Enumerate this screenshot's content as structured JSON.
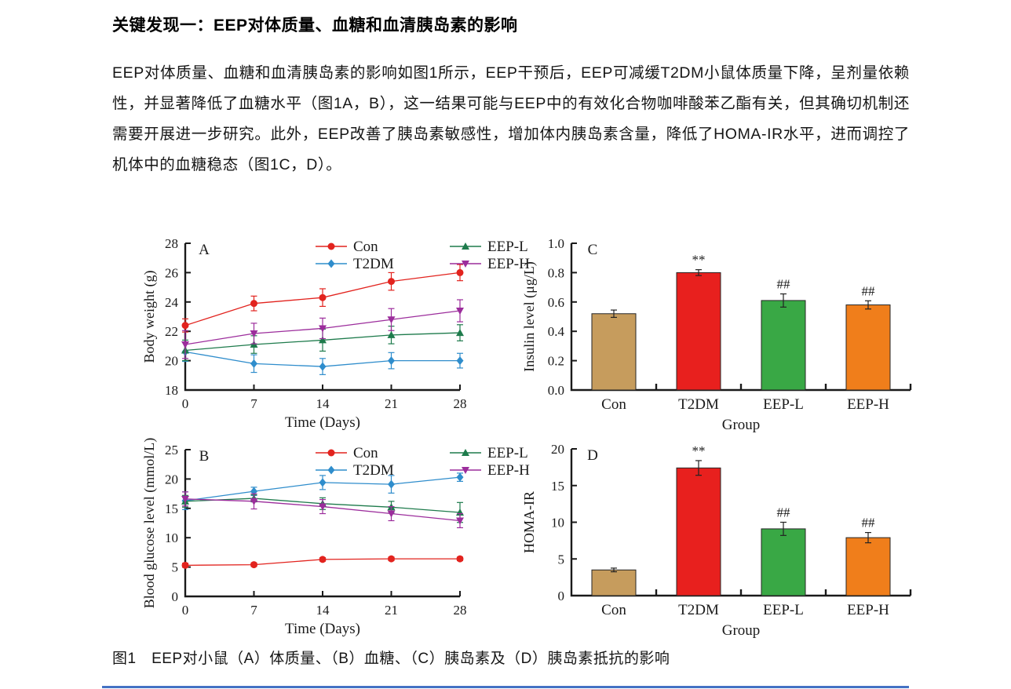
{
  "page": {
    "heading": "关键发现一：EEP对体质量、血糖和血清胰岛素的影响",
    "paragraph": "EEP对体质量、血糖和血清胰岛素的影响如图1所示，EEP干预后，EEP可减缓T2DM小鼠体质量下降，呈剂量依赖性，并显著降低了血糖水平（图1A，B），这一结果可能与EEP中的有效化合物咖啡酸苯乙酯有关，但其确切机制还需要开展进一步研究。此外，EEP改善了胰岛素敏感性，增加体内胰岛素含量，降低了HOMA-IR水平，进而调控了机体中的血糖稳态（图1C，D）。",
    "figure_caption": "图1　EEP对小鼠（A）体质量、（B）血糖、（C）胰岛素及（D）胰岛素抵抗的影响"
  },
  "colors": {
    "axis": "#1a1a1a",
    "con": "#e2231e",
    "t2dm": "#2f8dcc",
    "eep_l": "#1e7b4c",
    "eep_h": "#9c2d9c",
    "bar_con": "#c69c5d",
    "bar_t2dm": "#e8201e",
    "bar_eep_l": "#39a845",
    "bar_eep_h": "#f07e1b",
    "annotation": "#4a4a4a",
    "bottom_rule": "#4472c4"
  },
  "chart_data": [
    {
      "type": "line",
      "panel_label": "A",
      "xlabel": "Time (Days)",
      "ylabel": "Body weight (g)",
      "x": [
        0,
        7,
        14,
        21,
        28
      ],
      "xticks": [
        0,
        7,
        14,
        21,
        28
      ],
      "xlim": [
        0,
        28
      ],
      "ylim": [
        18,
        28
      ],
      "ytick_values": [
        18,
        20,
        22,
        24,
        26,
        28
      ],
      "ytick_labels": [
        "18",
        "20",
        "22",
        "24",
        "26",
        "28"
      ],
      "legend_position": "top",
      "series": [
        {
          "name": "Con",
          "marker": "circle",
          "color": "#e2231e",
          "values": [
            22.4,
            23.9,
            24.3,
            25.4,
            26.0
          ],
          "errors": [
            0.45,
            0.5,
            0.6,
            0.6,
            0.55
          ]
        },
        {
          "name": "T2DM",
          "marker": "diamond",
          "color": "#2f8dcc",
          "values": [
            20.6,
            19.8,
            19.6,
            20.0,
            20.0
          ],
          "errors": [
            0.65,
            0.6,
            0.55,
            0.55,
            0.5
          ]
        },
        {
          "name": "EEP-L",
          "marker": "triangle-up",
          "color": "#1e7b4c",
          "values": [
            20.7,
            21.1,
            21.4,
            21.75,
            21.9
          ],
          "errors": [
            0.7,
            0.6,
            0.75,
            0.6,
            0.55
          ]
        },
        {
          "name": "EEP-H",
          "marker": "triangle-down",
          "color": "#9c2d9c",
          "values": [
            21.1,
            21.85,
            22.2,
            22.8,
            23.4
          ],
          "errors": [
            0.95,
            0.7,
            0.7,
            0.75,
            0.75
          ]
        }
      ]
    },
    {
      "type": "line",
      "panel_label": "B",
      "xlabel": "Time (Days)",
      "ylabel": "Blood glucose level (mmol/L)",
      "x": [
        0,
        7,
        14,
        21,
        28
      ],
      "xticks": [
        0,
        7,
        14,
        21,
        28
      ],
      "xlim": [
        0,
        28
      ],
      "ylim": [
        0,
        25
      ],
      "ytick_values": [
        0,
        5,
        10,
        15,
        20,
        25
      ],
      "ytick_labels": [
        "0",
        "5",
        "10",
        "15",
        "20",
        "25"
      ],
      "legend_position": "top",
      "series": [
        {
          "name": "Con",
          "marker": "circle",
          "color": "#e2231e",
          "values": [
            5.3,
            5.4,
            6.3,
            6.4,
            6.4
          ],
          "errors": [
            0.35,
            0.3,
            0.3,
            0.3,
            0.3
          ]
        },
        {
          "name": "T2DM",
          "marker": "diamond",
          "color": "#2f8dcc",
          "values": [
            16.3,
            17.9,
            19.4,
            19.1,
            20.3
          ],
          "errors": [
            1.5,
            0.7,
            1.2,
            1.5,
            0.7
          ]
        },
        {
          "name": "EEP-L",
          "marker": "triangle-up",
          "color": "#1e7b4c",
          "values": [
            16.2,
            16.7,
            15.8,
            15.2,
            14.3
          ],
          "errors": [
            1.0,
            0.6,
            1.0,
            1.0,
            1.7
          ]
        },
        {
          "name": "EEP-H",
          "marker": "triangle-down",
          "color": "#9c2d9c",
          "values": [
            16.6,
            16.2,
            15.3,
            14.1,
            12.9
          ],
          "errors": [
            1.2,
            1.3,
            1.2,
            1.2,
            1.2
          ]
        }
      ]
    },
    {
      "type": "bar",
      "panel_label": "C",
      "xlabel": "Group",
      "ylabel": "Insulin level (μg/L)",
      "categories": [
        "Con",
        "T2DM",
        "EEP-L",
        "EEP-H"
      ],
      "values": [
        0.52,
        0.8,
        0.61,
        0.58
      ],
      "errors": [
        0.025,
        0.02,
        0.045,
        0.028
      ],
      "bar_colors": [
        "#c69c5d",
        "#e8201e",
        "#39a845",
        "#f07e1b"
      ],
      "annotations": [
        "",
        "**",
        "##",
        "##"
      ],
      "ylim": [
        0,
        1.0
      ],
      "ytick_values": [
        0,
        0.2,
        0.4,
        0.6,
        0.8,
        1.0
      ],
      "ytick_labels": [
        "0.0",
        "0.2",
        "0.4",
        "0.6",
        "0.8",
        "1.0"
      ]
    },
    {
      "type": "bar",
      "panel_label": "D",
      "xlabel": "Group",
      "ylabel": "HOMA-IR",
      "categories": [
        "Con",
        "T2DM",
        "EEP-L",
        "EEP-H"
      ],
      "values": [
        3.5,
        17.4,
        9.1,
        7.9
      ],
      "errors": [
        0.25,
        1.0,
        0.9,
        0.7
      ],
      "bar_colors": [
        "#c69c5d",
        "#e8201e",
        "#39a845",
        "#f07e1b"
      ],
      "annotations": [
        "",
        "**",
        "##",
        "##"
      ],
      "ylim": [
        0,
        20
      ],
      "ytick_values": [
        0,
        5,
        10,
        15,
        20
      ],
      "ytick_labels": [
        "0",
        "5",
        "10",
        "15",
        "20"
      ]
    }
  ]
}
